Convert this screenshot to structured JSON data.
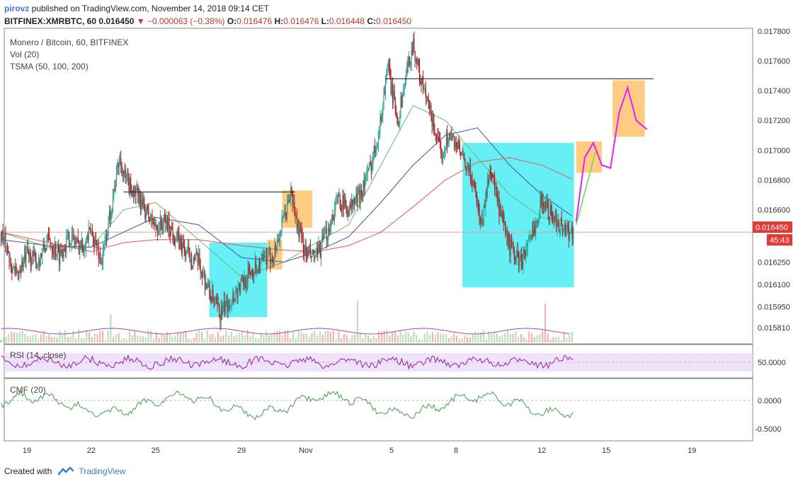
{
  "header": {
    "user": "pirovz",
    "published_text": "published on TradingView.com, November 14, 2018 09:14 CET"
  },
  "ticker": {
    "symbol": "BITFINEX:XMRBTC, 60",
    "last": "0.016450",
    "change": "−0.000063 (−0.38%)",
    "o_label": "O:",
    "o_value": "0.016476",
    "h_label": "H:",
    "h_value": "0.016476",
    "l_label": "L:",
    "l_value": "0.016448",
    "c_label": "C:",
    "c_value": "0.016450"
  },
  "legend": {
    "title": "Monero / Bitcoin, 60, BITFINEX",
    "vol": "Vol (20)",
    "tsma": "TSMA (50, 100, 200)",
    "rsi": "RSI (14, close)",
    "cmf": "CMF (20)"
  },
  "price_tag": {
    "value": "0.016450",
    "countdown": "45:43"
  },
  "footer": {
    "created_with": "Created with",
    "brand": "TradingView"
  },
  "colors": {
    "up": "#26a69a",
    "down": "#b71c1c",
    "sma_fast": "#66bb6a",
    "sma_mid": "#3f51b5",
    "sma_slow": "#ef5350",
    "cyan_box": "#00e5ee",
    "orange_box": "#ffb74d",
    "forecast_magenta": "#e91eff",
    "forecast_green": "#66dd44",
    "rsi_line": "#8e24aa",
    "rsi_band": "#e9d5f5",
    "cmf_line": "#43a047",
    "price_tag": "#e53935"
  },
  "chart_data": {
    "type": "line",
    "title": "Monero / Bitcoin, 60, BITFINEX",
    "x_ticks": [
      "19",
      "22",
      "25",
      "29",
      "Nov",
      "5",
      "8",
      "12",
      "15",
      "19"
    ],
    "price_ticks": [
      "0.017800",
      "0.017600",
      "0.017400",
      "0.017200",
      "0.017000",
      "0.016800",
      "0.016600",
      "0.016450",
      "0.016250",
      "0.016100",
      "0.015950",
      "0.015810"
    ],
    "ylim": [
      0.0157,
      0.0178
    ],
    "rsi_ticks": [
      "50.0000"
    ],
    "cmf_ticks": [
      "0.0000",
      "-0.5000"
    ],
    "series": [
      {
        "name": "XMRBTC",
        "x": [
          17.8,
          18.5,
          19.0,
          19.5,
          20.0,
          20.5,
          21.0,
          21.5,
          22.0,
          22.5,
          23.0,
          23.3,
          23.6,
          24.0,
          24.5,
          25.0,
          25.5,
          26.0,
          26.5,
          27.0,
          27.5,
          28.0,
          28.5,
          29.0,
          29.5,
          30.0,
          30.5,
          31.0,
          31.3,
          31.6,
          32.0,
          32.5,
          33.0,
          33.5,
          34.0,
          34.5,
          35.0,
          35.5,
          35.8,
          36.0,
          36.3,
          36.6,
          37.0,
          37.3,
          37.6,
          38.0,
          38.3,
          38.6,
          39.0,
          39.4,
          39.8,
          40.2,
          40.6,
          41.0,
          41.5,
          42.0,
          42.5,
          43.0,
          43.5,
          44.0,
          44.5
        ],
        "values": [
          0.01645,
          0.01615,
          0.0163,
          0.01625,
          0.0164,
          0.0163,
          0.01642,
          0.01635,
          0.01645,
          0.01625,
          0.01668,
          0.01695,
          0.0168,
          0.01672,
          0.0166,
          0.01648,
          0.01652,
          0.0164,
          0.0163,
          0.01625,
          0.01605,
          0.0159,
          0.016,
          0.0161,
          0.0162,
          0.01625,
          0.0163,
          0.01655,
          0.01672,
          0.0165,
          0.0163,
          0.01628,
          0.01645,
          0.01668,
          0.0166,
          0.0167,
          0.01688,
          0.0172,
          0.01758,
          0.0174,
          0.0172,
          0.01745,
          0.01772,
          0.0175,
          0.01735,
          0.01715,
          0.01695,
          0.0171,
          0.01705,
          0.0169,
          0.0168,
          0.0165,
          0.0169,
          0.0166,
          0.01635,
          0.01625,
          0.0164,
          0.01668,
          0.01655,
          0.01648,
          0.01645
        ]
      },
      {
        "name": "TSMA 50",
        "x": [
          17.8,
          20.0,
          22.0,
          23.5,
          25.0,
          27.0,
          29.0,
          31.0,
          32.5,
          34.0,
          35.5,
          37.0,
          38.5,
          40.0,
          41.5,
          43.0,
          44.5
        ],
        "values": [
          0.01645,
          0.01635,
          0.01635,
          0.0166,
          0.01665,
          0.0164,
          0.01615,
          0.01625,
          0.01638,
          0.0165,
          0.0169,
          0.0173,
          0.0172,
          0.01695,
          0.0167,
          0.01655,
          0.01652
        ]
      },
      {
        "name": "TSMA 100",
        "x": [
          17.8,
          20.0,
          22.0,
          23.5,
          25.0,
          27.0,
          29.0,
          31.0,
          32.5,
          34.0,
          35.5,
          37.0,
          38.5,
          40.0,
          41.5,
          43.0,
          44.5
        ],
        "values": [
          0.0164,
          0.01636,
          0.01635,
          0.01645,
          0.01655,
          0.0165,
          0.01628,
          0.01625,
          0.01632,
          0.01642,
          0.01665,
          0.0169,
          0.0171,
          0.01715,
          0.0169,
          0.0167,
          0.01655
        ]
      },
      {
        "name": "TSMA 200",
        "x": [
          17.8,
          20.0,
          22.0,
          23.5,
          25.0,
          27.0,
          29.0,
          31.0,
          32.5,
          34.0,
          35.5,
          37.0,
          38.5,
          40.0,
          41.5,
          43.0,
          44.5
        ],
        "values": [
          0.01645,
          0.01638,
          0.01632,
          0.01638,
          0.0164,
          0.0164,
          0.01636,
          0.01633,
          0.01632,
          0.01636,
          0.01645,
          0.01662,
          0.0168,
          0.01692,
          0.01695,
          0.0169,
          0.0168
        ]
      }
    ],
    "annotations": {
      "horizontal_lines": [
        {
          "x1": 23.5,
          "x2": 31.5,
          "y": 0.01672
        },
        {
          "x1": 35.7,
          "x2": 48.2,
          "y": 0.01748
        }
      ],
      "cyan_boxes": [
        {
          "x1": 27.5,
          "x2": 30.2,
          "y1": 0.01588,
          "y2": 0.01638
        },
        {
          "x1": 39.3,
          "x2": 44.5,
          "y1": 0.01608,
          "y2": 0.01705
        }
      ],
      "orange_boxes": [
        {
          "x1": 30.2,
          "x2": 30.9,
          "y1": 0.0162,
          "y2": 0.0164
        },
        {
          "x1": 30.9,
          "x2": 32.3,
          "y1": 0.01648,
          "y2": 0.01673
        },
        {
          "x1": 44.6,
          "x2": 45.8,
          "y1": 0.01685,
          "y2": 0.01706
        },
        {
          "x1": 46.3,
          "x2": 47.8,
          "y1": 0.01709,
          "y2": 0.01747
        }
      ],
      "forecast_magenta": {
        "x": [
          44.6,
          45.0,
          45.4,
          45.8,
          46.2,
          46.6,
          47.0,
          47.4,
          47.9
        ],
        "y": [
          0.01652,
          0.01695,
          0.01705,
          0.0169,
          0.01688,
          0.01725,
          0.01742,
          0.0172,
          0.01714
        ]
      },
      "forecast_green": {
        "x": [
          44.6,
          45.5
        ],
        "y": [
          0.0165,
          0.01699
        ]
      }
    }
  }
}
